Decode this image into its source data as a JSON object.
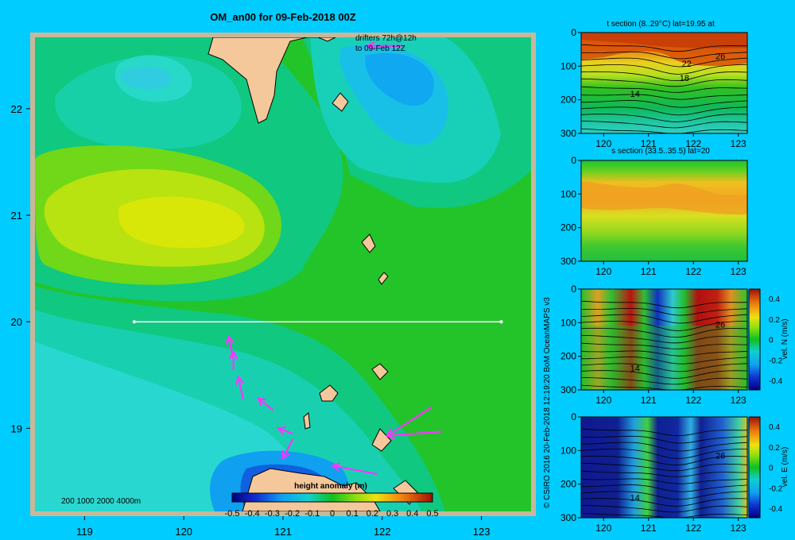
{
  "title": "OM_an00 for 09-Feb-2018 00Z",
  "drifters_text": [
    "drifters 72h@12h",
    "to 09-Feb 12Z"
  ],
  "credit": "© CSIRO 2016   20-Feb-2018 12:19:20 BoM OceanMAPS v3",
  "depth_legend": "200  1000  2000  4000m",
  "colors": {
    "background": "#00ccff",
    "land": "#f4c89a",
    "drifter": "#ff33ff",
    "frame": "#c8b89a"
  },
  "chart_data": [
    {
      "type": "heatmap",
      "name": "map",
      "x_ticks": [
        "119",
        "120",
        "121",
        "122",
        "123"
      ],
      "x_values": [
        119,
        120,
        121,
        122,
        123
      ],
      "y_ticks": [
        "22",
        "21",
        "20",
        "19"
      ],
      "y_values": [
        22,
        21,
        20,
        19
      ],
      "xlim": [
        118.5,
        123.5
      ],
      "ylim": [
        18.22,
        22.67
      ],
      "section_line": {
        "lon_start": 119.5,
        "lon_end": 123.2,
        "lat": 20
      },
      "colorbar": {
        "label": "height anomaly (m)",
        "ticks": [
          "-0.5",
          "-0.4",
          "-0.3",
          "-0.2",
          "-0.1",
          "0",
          "0.1",
          "0.2",
          "0.3",
          "0.4",
          "0.5"
        ],
        "range": [
          -0.5,
          0.5
        ]
      },
      "drifters": [
        {
          "lon_from": 122.2,
          "lat_from": 22.59,
          "lon_to": 121.85,
          "lat_to": 22.59
        },
        {
          "lon_from": 120.5,
          "lat_from": 19.65,
          "lon_to": 120.45,
          "lat_to": 19.86
        },
        {
          "lon_from": 120.5,
          "lat_from": 19.55,
          "lon_to": 120.5,
          "lat_to": 19.72
        },
        {
          "lon_from": 120.6,
          "lat_from": 19.27,
          "lon_to": 120.55,
          "lat_to": 19.48
        },
        {
          "lon_from": 120.9,
          "lat_from": 19.17,
          "lon_to": 120.75,
          "lat_to": 19.28
        },
        {
          "lon_from": 121.1,
          "lat_from": 18.95,
          "lon_to": 120.95,
          "lat_to": 19.0
        },
        {
          "lon_from": 121.1,
          "lat_from": 18.9,
          "lon_to": 121.0,
          "lat_to": 18.72
        },
        {
          "lon_from": 122.5,
          "lat_from": 19.2,
          "lon_to": 122.05,
          "lat_to": 18.93
        },
        {
          "lon_from": 122.6,
          "lat_from": 18.97,
          "lon_to": 122.05,
          "lat_to": 18.93
        },
        {
          "lon_from": 121.95,
          "lat_from": 18.57,
          "lon_to": 121.5,
          "lat_to": 18.65
        }
      ]
    },
    {
      "type": "heatmap",
      "name": "panel1",
      "title": "t section (8..29°C) lat=19.95 at",
      "x_ticks": [
        "120",
        "121",
        "122",
        "123"
      ],
      "x_values": [
        120,
        121,
        122,
        123
      ],
      "y_ticks": [
        "0",
        "100",
        "200",
        "300"
      ],
      "y_values": [
        0,
        100,
        200,
        300
      ],
      "xlim": [
        119.5,
        123.2
      ],
      "ylim": [
        0,
        300
      ],
      "contour_labels": [
        {
          "text": "26",
          "lon": 122.6,
          "depth": 70
        },
        {
          "text": "22",
          "lon": 121.85,
          "depth": 92
        },
        {
          "text": "18",
          "lon": 121.8,
          "depth": 135
        },
        {
          "text": "14",
          "lon": 120.7,
          "depth": 182
        }
      ]
    },
    {
      "type": "heatmap",
      "name": "panel2",
      "title": "s section (33.5..35.5) lat=20",
      "x_ticks": [
        "120",
        "121",
        "122",
        "123"
      ],
      "x_values": [
        120,
        121,
        122,
        123
      ],
      "y_ticks": [
        "0",
        "100",
        "200",
        "300"
      ],
      "y_values": [
        0,
        100,
        200,
        300
      ],
      "xlim": [
        119.5,
        123.2
      ],
      "ylim": [
        0,
        300
      ]
    },
    {
      "type": "heatmap",
      "name": "panel3",
      "x_ticks": [
        "120",
        "121",
        "122",
        "123"
      ],
      "x_values": [
        120,
        121,
        122,
        123
      ],
      "y_ticks": [
        "0",
        "100",
        "200",
        "300"
      ],
      "y_values": [
        0,
        100,
        200,
        300
      ],
      "xlim": [
        119.5,
        123.2
      ],
      "ylim": [
        0,
        300
      ],
      "colorbar": {
        "label": "vel. N (m/s)",
        "ticks": [
          "0.4",
          "0.2",
          "0",
          "-0.2",
          "-0.4"
        ],
        "tick_values": [
          0.4,
          0.2,
          0,
          -0.2,
          -0.4
        ]
      },
      "contour_labels": [
        {
          "text": "26",
          "lon": 122.6,
          "depth": 105
        },
        {
          "text": "14",
          "lon": 120.7,
          "depth": 235
        }
      ]
    },
    {
      "type": "heatmap",
      "name": "panel4",
      "x_ticks": [
        "120",
        "121",
        "122",
        "123"
      ],
      "x_values": [
        120,
        121,
        122,
        123
      ],
      "y_ticks": [
        "0",
        "100",
        "200",
        "300"
      ],
      "y_values": [
        0,
        100,
        200,
        300
      ],
      "xlim": [
        119.5,
        123.2
      ],
      "ylim": [
        0,
        300
      ],
      "colorbar": {
        "label": "vel. E (m/s)",
        "ticks": [
          "0.4",
          "0.2",
          "0",
          "-0.2",
          "-0.4"
        ],
        "tick_values": [
          0.4,
          0.2,
          0,
          -0.2,
          -0.4
        ]
      },
      "contour_labels": [
        {
          "text": "26",
          "lon": 122.6,
          "depth": 115
        },
        {
          "text": "14",
          "lon": 120.7,
          "depth": 240
        }
      ]
    }
  ]
}
